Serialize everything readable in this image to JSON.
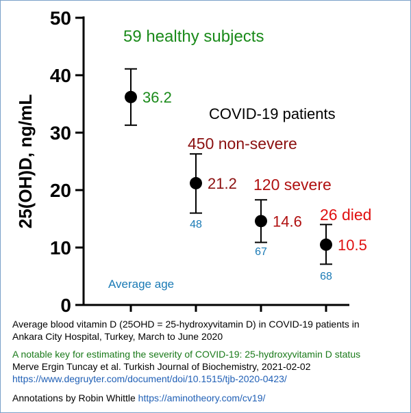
{
  "chart_data": {
    "type": "scatter",
    "ylabel": "25(OH)D, ng/mL",
    "ylim": [
      0,
      50
    ],
    "yticks": [
      0,
      10,
      20,
      30,
      40,
      50
    ],
    "categories": [
      "59 healthy subjects",
      "450 non-severe",
      "120 severe",
      "26 died"
    ],
    "points": [
      {
        "label": "59 healthy subjects",
        "mean": 36.2,
        "mean_label": "36.2",
        "low": 31.3,
        "high": 41.1,
        "age": "",
        "color": "#1a8a1a"
      },
      {
        "label": "450 non-severe",
        "mean": 21.2,
        "mean_label": "21.2",
        "low": 16.0,
        "high": 26.3,
        "age": "48",
        "color": "#8b1010"
      },
      {
        "label": "120 severe",
        "mean": 14.6,
        "mean_label": "14.6",
        "low": 10.9,
        "high": 18.3,
        "age": "67",
        "color": "#b01010"
      },
      {
        "label": "26 died",
        "mean": 10.5,
        "mean_label": "10.5",
        "low": 7.1,
        "high": 14.0,
        "age": "68",
        "color": "#e01010"
      }
    ],
    "annotations": {
      "group_title": "COVID-19 patients",
      "average_age": "Average age"
    },
    "colors": {
      "healthy": "#1a8a1a",
      "nonsevere": "#8b1010",
      "severe": "#b01010",
      "died": "#e01010",
      "age": "#1a7ab5"
    }
  },
  "caption": {
    "line1": "Average blood vitamin D (25OHD = 25-hydroxyvitamin D) in COVID-19 patients in",
    "line2": "Ankara City Hospital, Turkey, March to June 2020",
    "paper_title": "A notable key for estimating the severity of COVID-19: 25-hydroxyvitamin D status",
    "citation": "Merve Ergin Tuncay et al. Turkish Journal of Biochemistry, 2021-02-02",
    "doi_url": "https://www.degruyter.com/document/doi/10.1515/tjb-2020-0423/",
    "annotations_by": "Annotations by Robin Whittle",
    "annotations_url": "https://aminotheory.com/cv19/"
  }
}
